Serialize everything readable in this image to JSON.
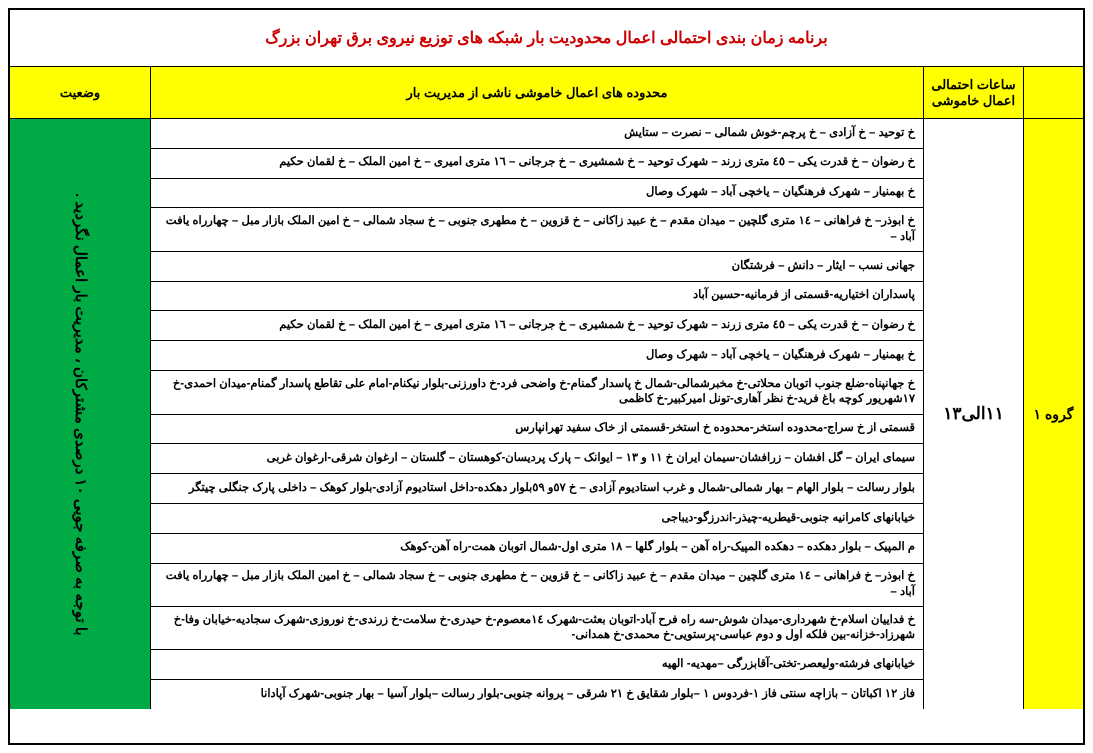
{
  "title": "برنامه زمان بندی احتمالی اعمال محدودیت بار شبکه های توزیع نیروی برق تهران بزرگ",
  "headers": {
    "time": "ساعات احتمالی اعمال خاموشی",
    "areas": "محدوده های اعمال خاموشی ناشی از مدیریت بار",
    "status": "وضعیت"
  },
  "group_label": "گروه ۱",
  "time_label": "۱۱الی۱۳",
  "status_text": "با توجه به صرفه جویی ۱۰ درصدی مشترکان ، مدیریت بار اعمال نگردید .",
  "rows": [
    "خ توحید – خ آزادی – خ پرچم-خوش شمالی  – نصرت – ستایش",
    "خ رضوان – خ قدرت یکی – ٤٥ متری زرند – شهرک توحید – خ شمشیری – خ جرجانی – ١٦ متری امیری – خ امین الملک – خ لقمان حکیم",
    "خ بهمنیار – شهرک فرهنگیان – یاخچی آباد – شهرک وصال",
    "خ ابوذر– خ فراهانی – ١٤ متری گلچین – میدان مقدم – خ عبید زاکانی – خ قزوین – خ مطهری جنوبی – خ سجاد شمالی – خ امین الملک بازار مبل – چهارراه یافت آباد –",
    "جهانی نسب – ایثار – دانش – فرشتگان",
    "پاسداران اختیاریه-قسمتی از فرمانیه-حسین آباد",
    "خ رضوان – خ قدرت یکی – ٤٥ متری زرند – شهرک توحید – خ شمشیری – خ جرجانی – ١٦ متری امیری – خ امین الملک – خ لقمان حکیم",
    "خ بهمنیار – شهرک فرهنگیان – یاخچی آباد – شهرک وصال",
    "خ جهانپناه-ضلع جنوب اتوبان محلاتی-خ مخبرشمالی-شمال خ پاسدار گمنام-خ واضحی فرد-خ داورزنی-بلوار نیکنام-امام علی تقاطع پاسدار گمنام-میدان احمدی-خ ١٧شهریور کوچه باغ فرید-خ نظر آهاری-تونل امیرکبیر-خ کاظمی",
    "قسمتی از خ سراج-محدوده استخر-محدوده خ استخر-قسمتی از خاک سفید تهرانپارس",
    "سیمای ایران – گل افشان – زرافشان-سیمان ایران خ ۱۱ و ۱۳ – ایوانک – پارک پردیسان-کوهستان – گلستان – ارغوان شرقی-ارغوان غربی",
    "بلوار رسالت – بلوار الهام – بهار شمالی-شمال و غرب استادیوم آزادی – خ ٥٧و ٥٩بلوار دهکده-داخل استادیوم آزادی-بلوار کوهک – داخلی پارک جنگلی چیتگر",
    "خیابانهای کامرانیه جنوبی-قیطریه-چیذر-اندرزگو-دیباجی",
    "م المپیک – بلوار دهکده – دهکده المپیک-راه آهن – بلوار گلها – ۱۸ متری اول-شمال اتوبان همت-راه آهن-کوهک",
    "خ ابوذر– خ فراهانی – ١٤ متری گلچین – میدان مقدم – خ عبید زاکانی – خ قزوین – خ مطهری جنوبی – خ سجاد شمالی – خ امین الملک بازار مبل – چهارراه یافت آباد –",
    "خ فداییان اسلام-خ شهرداری-میدان شوش-سه راه فرح آباد-اتوبان بعثت-شهرک ١٤معصوم-خ حیدری-خ سلامت-خ زرندی-خ نوروزی-شهرک سجادیه-خیابان وفا-خ شهرزاد-خزانه-بین فلکه اول و دوم عباسی-پرستویی-خ محمدی-خ همدانی-",
    "خیابانهای فرشته-ولیعصر-تختی-آقابزرگی  –مهدیه- الهیه",
    "فاز ۱۲ اکباتان – بازاچه سنتی فاز ۱-فردوس ۱ –بلوار شقایق خ ۲۱ شرقی – پروانه جنوبی-بلوار رسالت –بلوار آسیا – بهار جنوبی-شهرک آپادانا"
  ],
  "colors": {
    "title": "#cc0000",
    "header_bg": "#ffff00",
    "status_bg": "#00aa44",
    "border": "#000000",
    "bg": "#ffffff"
  }
}
